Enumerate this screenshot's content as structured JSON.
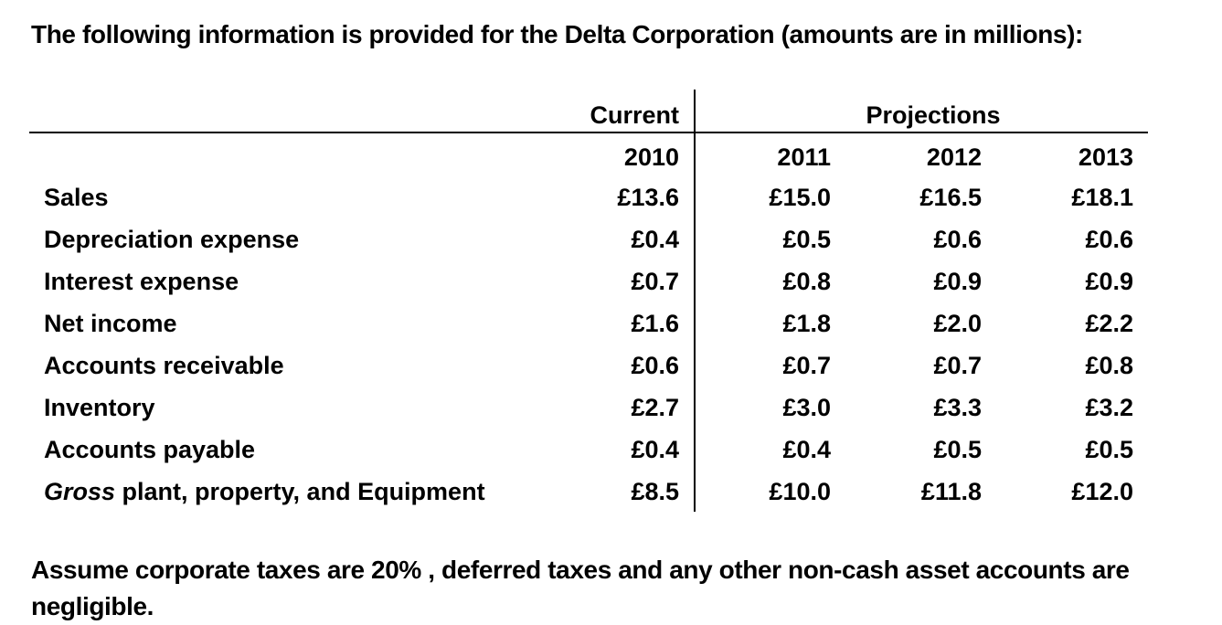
{
  "intro": "The following information is provided for the Delta Corporation (amounts are in millions):",
  "header": {
    "current": "Current",
    "projections": "Projections",
    "years": [
      "2010",
      "2011",
      "2012",
      "2013"
    ]
  },
  "rows": [
    {
      "label": "Sales",
      "values": [
        "£13.6",
        "£15.0",
        "£16.5",
        "£18.1"
      ]
    },
    {
      "label": "Depreciation expense",
      "values": [
        "£0.4",
        "£0.5",
        "£0.6",
        "£0.6"
      ]
    },
    {
      "label": "Interest expense",
      "values": [
        "£0.7",
        "£0.8",
        "£0.9",
        "£0.9"
      ]
    },
    {
      "label": "Net income",
      "values": [
        "£1.6",
        "£1.8",
        "£2.0",
        "£2.2"
      ]
    },
    {
      "label": "Accounts receivable",
      "values": [
        "£0.6",
        "£0.7",
        "£0.7",
        "£0.8"
      ]
    },
    {
      "label": "Inventory",
      "values": [
        "£2.7",
        "£3.0",
        "£3.3",
        "£3.2"
      ]
    },
    {
      "label": "Accounts payable",
      "values": [
        "£0.4",
        "£0.4",
        "£0.5",
        "£0.5"
      ]
    },
    {
      "label_italic": "Gross",
      "label": " plant, property, and Equipment",
      "values": [
        "£8.5",
        "£10.0",
        "£11.8",
        "£12.0"
      ]
    }
  ],
  "outro": "Assume corporate taxes are 20% , deferred taxes and any other non-cash asset accounts are negligible."
}
